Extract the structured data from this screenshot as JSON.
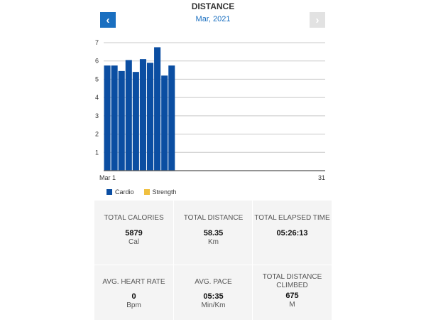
{
  "header": {
    "title": "DISTANCE",
    "month_label": "Mar, 2021",
    "prev_icon": "chevron-left-icon",
    "next_icon": "chevron-right-icon",
    "prev_glyph": "‹",
    "next_glyph": "›"
  },
  "colors": {
    "accent": "#1a6fc0",
    "cardio": "#0b4ea2",
    "strength": "#f0c040",
    "next_disabled": "#e2e2e2"
  },
  "chart_data": {
    "type": "bar",
    "y_ticks": [
      "1",
      "2",
      "3",
      "4",
      "5",
      "6",
      "7"
    ],
    "ylim": [
      0,
      7
    ],
    "x_start_label": "Mar 1",
    "x_end_label": "31",
    "x_range": [
      1,
      31
    ],
    "grid": true,
    "series": [
      {
        "name": "Cardio",
        "color": "#0b4ea2",
        "x": [
          1,
          2,
          3,
          4,
          5,
          6,
          7,
          8,
          9,
          10
        ],
        "values": [
          5.75,
          5.75,
          5.45,
          6.05,
          5.4,
          6.1,
          5.9,
          6.75,
          5.2,
          5.75
        ]
      }
    ],
    "legend": [
      "Cardio",
      "Strength"
    ],
    "legend_placement": "bottom-left"
  },
  "stats": [
    {
      "label": "TOTAL CALORIES",
      "value": "5879",
      "unit": "Cal"
    },
    {
      "label": "TOTAL DISTANCE",
      "value": "58.35",
      "unit": "Km"
    },
    {
      "label": "TOTAL ELAPSED TIME",
      "value": "05:26:13",
      "unit": ""
    },
    {
      "label": "AVG. HEART RATE",
      "value": "0",
      "unit": "Bpm"
    },
    {
      "label": "AVG. PACE",
      "value": "05:35",
      "unit": "Min/Km"
    },
    {
      "label": "TOTAL DISTANCE CLIMBED",
      "value": "675",
      "unit": "M"
    }
  ]
}
